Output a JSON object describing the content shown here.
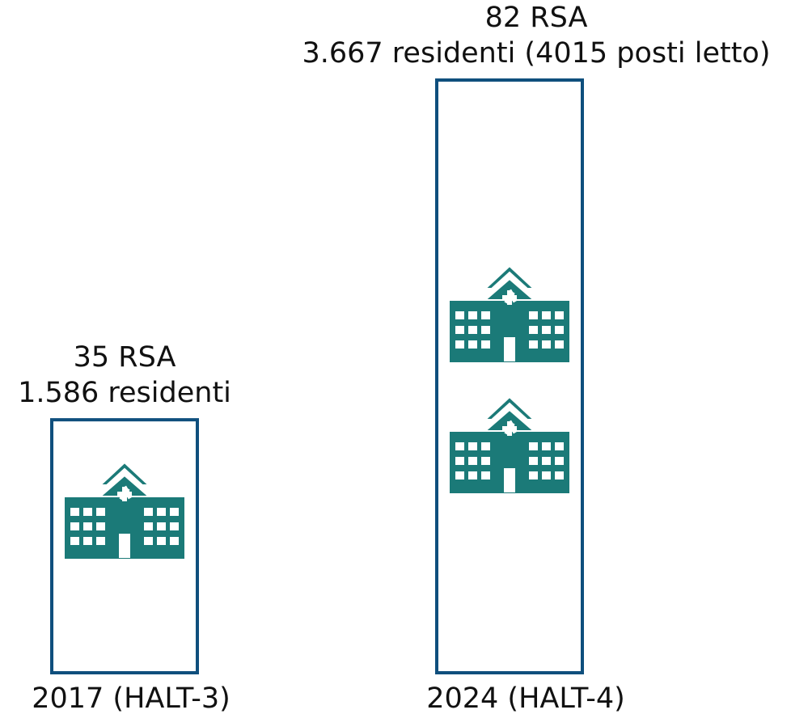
{
  "chart_data": {
    "type": "bar",
    "categories": [
      "2017 (HALT-3)",
      "2024 (HALT-4)"
    ],
    "values": [
      35,
      82
    ],
    "value_labels": [
      "35 RSA",
      "82 RSA"
    ],
    "annotations": [
      "1.586 residenti",
      "3.667 residenti (4015 posti letto)"
    ],
    "color": "#0f4f7d",
    "icon_color": "#1b7a78"
  }
}
